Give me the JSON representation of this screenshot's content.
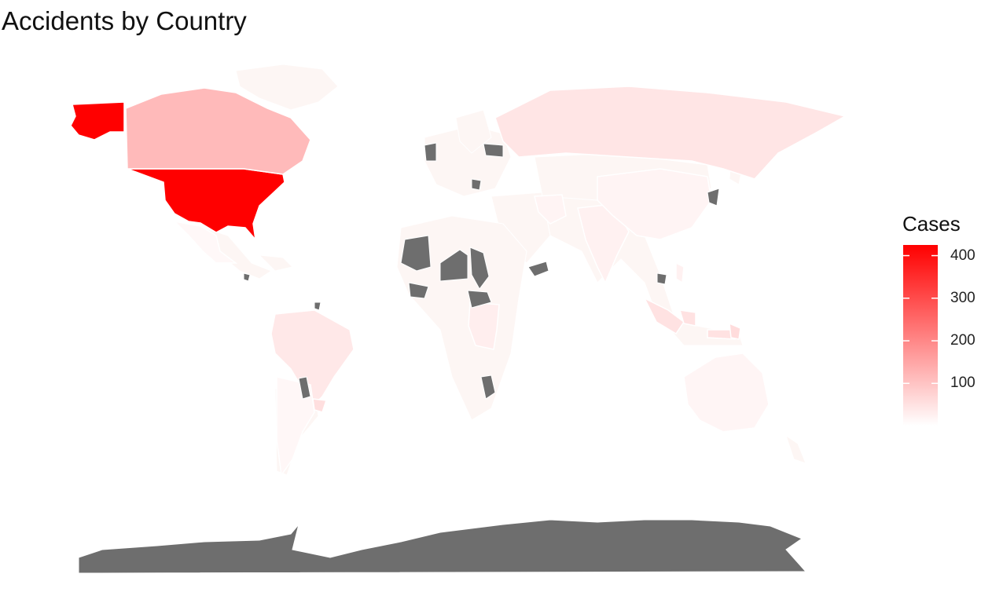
{
  "title": "Accidents by Country",
  "legend": {
    "title": "Cases",
    "ticks": [
      "400",
      "300",
      "200",
      "100"
    ],
    "tick_values": [
      400,
      300,
      200,
      100
    ],
    "domain": [
      1,
      425
    ],
    "color_low": "#ffffff",
    "color_high": "#ff0000",
    "na_color": "#6e6e6e"
  },
  "map_data": {
    "type": "choropleth",
    "projection": "equirectangular",
    "country_values": [
      {
        "country": "United States",
        "value": 425
      },
      {
        "country": "Canada",
        "value": 115
      },
      {
        "country": "Russia",
        "value": 45
      },
      {
        "country": "Brazil",
        "value": 40
      },
      {
        "country": "Indonesia",
        "value": 50
      },
      {
        "country": "India",
        "value": 25
      },
      {
        "country": "China",
        "value": 20
      },
      {
        "country": "Australia",
        "value": 18
      },
      {
        "country": "Argentina",
        "value": 15
      },
      {
        "country": "Mexico",
        "value": 12
      },
      {
        "country": "Papua New Guinea",
        "value": 60
      },
      {
        "country": "DR Congo",
        "value": 30
      },
      {
        "country": "Uruguay",
        "value": 55
      },
      {
        "country": "Iran",
        "value": 20
      },
      {
        "country": "Philippines",
        "value": 25
      }
    ],
    "no_data_countries": [
      "Antarctica",
      "Nigeria",
      "Mali",
      "Madagascar",
      "Paraguay",
      "Japan",
      "Myanmar"
    ]
  }
}
